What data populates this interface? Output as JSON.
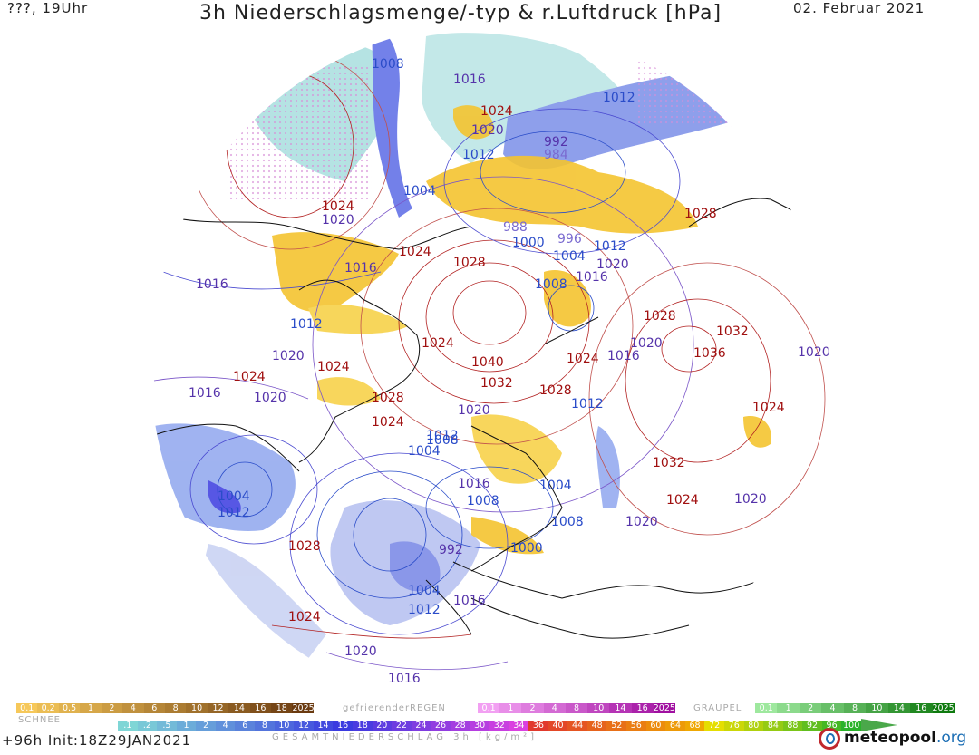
{
  "header": {
    "left": "???, 19Uhr",
    "title": "3h Niederschlagsmenge/-typ & r.Luftdruck [hPa]",
    "date": "02. Februar 2021"
  },
  "map": {
    "pressure_labels": [
      {
        "text": "1008",
        "color": "#2a4cc9"
      },
      {
        "text": "1012",
        "color": "#2a4cc9"
      },
      {
        "text": "1016",
        "color": "#5533aa"
      },
      {
        "text": "1024",
        "color": "#a01010"
      },
      {
        "text": "1020",
        "color": "#5533aa"
      },
      {
        "text": "992",
        "color": "#5533aa"
      },
      {
        "text": "984",
        "color": "#7a6ad0"
      },
      {
        "text": "1012",
        "color": "#2a4cc9"
      },
      {
        "text": "1024",
        "color": "#a01010"
      },
      {
        "text": "1028",
        "color": "#a01010"
      },
      {
        "text": "1004",
        "color": "#2a4cc9"
      },
      {
        "text": "1024",
        "color": "#a01010"
      },
      {
        "text": "1020",
        "color": "#5533aa"
      },
      {
        "text": "988",
        "color": "#7a6ad0"
      },
      {
        "text": "996",
        "color": "#7a6ad0"
      },
      {
        "text": "1000",
        "color": "#2a4cc9"
      },
      {
        "text": "1012",
        "color": "#2a4cc9"
      },
      {
        "text": "1004",
        "color": "#2a4cc9"
      },
      {
        "text": "1020",
        "color": "#5533aa"
      },
      {
        "text": "1008",
        "color": "#2a4cc9"
      },
      {
        "text": "1024",
        "color": "#a01010"
      },
      {
        "text": "1016",
        "color": "#5533aa"
      },
      {
        "text": "1028",
        "color": "#a01010"
      },
      {
        "text": "1016",
        "color": "#5533aa"
      },
      {
        "text": "1008",
        "color": "#2a4cc9"
      },
      {
        "text": "1016",
        "color": "#5533aa"
      },
      {
        "text": "1012",
        "color": "#2a4cc9"
      },
      {
        "text": "1028",
        "color": "#a01010"
      },
      {
        "text": "1032",
        "color": "#a01010"
      },
      {
        "text": "1020",
        "color": "#5533aa"
      },
      {
        "text": "1020",
        "color": "#5533aa"
      },
      {
        "text": "1024",
        "color": "#a01010"
      },
      {
        "text": "1024",
        "color": "#a01010"
      },
      {
        "text": "1036",
        "color": "#a01010"
      },
      {
        "text": "1016",
        "color": "#5533aa"
      },
      {
        "text": "1020",
        "color": "#5533aa"
      },
      {
        "text": "1024",
        "color": "#a01010"
      },
      {
        "text": "1040",
        "color": "#a01010"
      },
      {
        "text": "1024",
        "color": "#a01010"
      },
      {
        "text": "1032",
        "color": "#a01010"
      },
      {
        "text": "1028",
        "color": "#a01010"
      },
      {
        "text": "1016",
        "color": "#5533aa"
      },
      {
        "text": "1020",
        "color": "#5533aa"
      },
      {
        "text": "1028",
        "color": "#a01010"
      },
      {
        "text": "1012",
        "color": "#2a4cc9"
      },
      {
        "text": "1024",
        "color": "#a01010"
      },
      {
        "text": "1020",
        "color": "#5533aa"
      },
      {
        "text": "1024",
        "color": "#a01010"
      },
      {
        "text": "1012",
        "color": "#2a4cc9"
      },
      {
        "text": "1004",
        "color": "#2a4cc9"
      },
      {
        "text": "1032",
        "color": "#a01010"
      },
      {
        "text": "1004",
        "color": "#2a4cc9"
      },
      {
        "text": "1016",
        "color": "#5533aa"
      },
      {
        "text": "1004",
        "color": "#2a4cc9"
      },
      {
        "text": "1008",
        "color": "#2a4cc9"
      },
      {
        "text": "1024",
        "color": "#a01010"
      },
      {
        "text": "1020",
        "color": "#5533aa"
      },
      {
        "text": "1012",
        "color": "#2a4cc9"
      },
      {
        "text": "1008",
        "color": "#2a4cc9"
      },
      {
        "text": "1020",
        "color": "#5533aa"
      },
      {
        "text": "1028",
        "color": "#a01010"
      },
      {
        "text": "992",
        "color": "#5533aa"
      },
      {
        "text": "1000",
        "color": "#2a4cc9"
      },
      {
        "text": "1004",
        "color": "#2a4cc9"
      },
      {
        "text": "1016",
        "color": "#5533aa"
      },
      {
        "text": "1012",
        "color": "#2a4cc9"
      },
      {
        "text": "1024",
        "color": "#a01010"
      },
      {
        "text": "1020",
        "color": "#5533aa"
      },
      {
        "text": "1016",
        "color": "#5533aa"
      }
    ]
  },
  "legend": {
    "snow_label": "SCHNEE",
    "snow_scale": [
      "0.1",
      "0.2",
      "0.5",
      "1",
      "2",
      "4",
      "6",
      "8",
      "10",
      "12",
      "14",
      "16",
      "18",
      "2025+"
    ],
    "freezing_rain_label": "gefrierenderREGEN",
    "freezing_rain_scale": [
      "0.1",
      "1",
      "2",
      "4",
      "8",
      "10",
      "14",
      "16",
      "2025+"
    ],
    "graupel_label": "GRAUPEL",
    "graupel_scale": [
      "0.1",
      "1",
      "2",
      "4",
      "8",
      "10",
      "14",
      "16",
      "2025+"
    ],
    "total_scale": [
      ".1",
      ".2",
      ".5",
      "1",
      "2",
      "4",
      "6",
      "8",
      "10",
      "12",
      "14",
      "16",
      "18",
      "20",
      "22",
      "24",
      "26",
      "28",
      "30",
      "32",
      "34",
      "36",
      "40",
      "44",
      "48",
      "52",
      "56",
      "60",
      "64",
      "68",
      "72",
      "76",
      "80",
      "84",
      "88",
      "92",
      "96",
      "100"
    ],
    "total_label": "GESAMTNIEDERSCHLAG 3h [kg/m²]",
    "colors": {
      "snow": "#f0b000",
      "freezing_rain": "#e040e0",
      "graupel": "#2ab22a",
      "precip_low": "#7fd6d6",
      "precip_mid": "#3a3ae0",
      "precip_high": "#e03030"
    }
  },
  "footer": {
    "forecast": "+96h Init:18Z29JAN2021",
    "brand_name": "meteopool",
    "brand_tld": ".org"
  }
}
